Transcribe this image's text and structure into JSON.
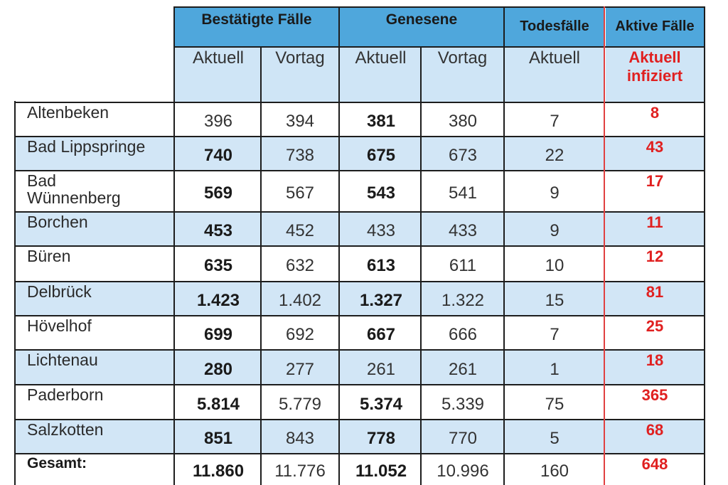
{
  "header": {
    "groups": {
      "bestaetigte": "Bestätigte Fälle",
      "genesene": "Genesene",
      "todesfaelle": "Todesfälle",
      "aktive": "Aktive Fälle"
    },
    "sub": {
      "aktuell": "Aktuell",
      "vortag": "Vortag",
      "aktuell_infiziert_1": "Aktuell",
      "aktuell_infiziert_2": "infiziert"
    }
  },
  "rows": [
    {
      "name": [
        "Altenbeken"
      ],
      "best_akt": "396",
      "best_vor": "394",
      "gen_akt": "381",
      "gen_vor": "380",
      "tod": "7",
      "aktiv": "8"
    },
    {
      "name": [
        "Bad Lippspringe"
      ],
      "best_akt": "740",
      "best_vor": "738",
      "gen_akt": "675",
      "gen_vor": "673",
      "tod": "22",
      "aktiv": "43"
    },
    {
      "name": [
        "Bad",
        "Wünnenberg"
      ],
      "best_akt": "569",
      "best_vor": "567",
      "gen_akt": "543",
      "gen_vor": "541",
      "tod": "9",
      "aktiv": "17"
    },
    {
      "name": [
        "Borchen"
      ],
      "best_akt": "453",
      "best_vor": "452",
      "gen_akt": "433",
      "gen_vor": "433",
      "tod": "9",
      "aktiv": "11"
    },
    {
      "name": [
        "Büren"
      ],
      "best_akt": "635",
      "best_vor": "632",
      "gen_akt": "613",
      "gen_vor": "611",
      "tod": "10",
      "aktiv": "12"
    },
    {
      "name": [
        "Delbrück"
      ],
      "best_akt": "1.423",
      "best_vor": "1.402",
      "gen_akt": "1.327",
      "gen_vor": "1.322",
      "tod": "15",
      "aktiv": "81"
    },
    {
      "name": [
        "Hövelhof"
      ],
      "best_akt": "699",
      "best_vor": "692",
      "gen_akt": "667",
      "gen_vor": "666",
      "tod": "7",
      "aktiv": "25"
    },
    {
      "name": [
        "Lichtenau"
      ],
      "best_akt": "280",
      "best_vor": "277",
      "gen_akt": "261",
      "gen_vor": "261",
      "tod": "1",
      "aktiv": "18"
    },
    {
      "name": [
        "Paderborn"
      ],
      "best_akt": "5.814",
      "best_vor": "5.779",
      "gen_akt": "5.374",
      "gen_vor": "5.339",
      "tod": "75",
      "aktiv": "365"
    },
    {
      "name": [
        "Salzkotten"
      ],
      "best_akt": "851",
      "best_vor": "843",
      "gen_akt": "778",
      "gen_vor": "770",
      "tod": "5",
      "aktiv": "68"
    }
  ],
  "total": {
    "name": "Gesamt:",
    "best_akt": "11.860",
    "best_vor": "11.776",
    "gen_akt": "11.052",
    "gen_vor": "10.996",
    "tod": "160",
    "aktiv": "648"
  },
  "colors": {
    "header_blue": "#4fa7dc",
    "light_blue": "#d2e6f6",
    "active_red": "#e02020"
  }
}
